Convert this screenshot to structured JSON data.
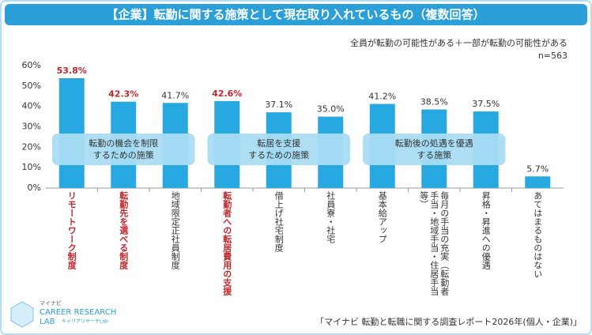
{
  "chart_data": {
    "type": "bar",
    "title": "【企業】転勤に関する施策として現在取り入れているもの（複数回答）",
    "subtitle": "全員が転勤の可能性がある＋一部が転勤の可能性がある",
    "sample_size": "n=563",
    "categories": [
      "リモートワーク制度",
      "転勤先を選べる制度",
      "地域限定正社員制度",
      "転勤者への転居費用の支援",
      "借上げ社宅制度",
      "社員寮・社宅",
      "基本給アップ",
      "毎月の手当の充実（転勤者手当・地域手当・住居手当等）",
      "昇格・昇進への優遇",
      "あてはまるものはない"
    ],
    "values": [
      53.8,
      42.3,
      41.7,
      42.6,
      37.1,
      35.0,
      41.2,
      38.5,
      37.5,
      5.7
    ],
    "value_labels": [
      "53.8%",
      "42.3%",
      "41.7%",
      "42.6%",
      "37.1%",
      "35.0%",
      "41.2%",
      "38.5%",
      "37.5%",
      "5.7%"
    ],
    "color": "#27a8e0",
    "label_colors": [
      "#c0282d",
      "#c0282d",
      "#333333",
      "#c0282d",
      "#333333",
      "#333333",
      "#333333",
      "#333333",
      "#333333",
      "#333333"
    ],
    "ylim": [
      0,
      60
    ],
    "yticks": [
      {
        "value": 0,
        "label": "0%"
      },
      {
        "value": 10,
        "label": "10%"
      },
      {
        "value": 20,
        "label": "20%"
      },
      {
        "value": 30,
        "label": "30%"
      },
      {
        "value": 40,
        "label": "40%"
      },
      {
        "value": 50,
        "label": "50%"
      },
      {
        "value": 60,
        "label": "60%"
      }
    ],
    "grid": false,
    "annotations": [
      {
        "lines": [
          "転勤の機会を制限",
          "するための施策"
        ],
        "span": [
          0,
          2
        ]
      },
      {
        "lines": [
          "転居を支援",
          "するための施策"
        ],
        "span": [
          3,
          5
        ]
      },
      {
        "lines": [
          "転勤後の処遇を優遇",
          "する施策"
        ],
        "span": [
          6,
          8
        ]
      }
    ],
    "source": "「マイナビ 転勤と転職に関する調査レポート2026年(個人・企業)」"
  },
  "logo": {
    "brand": "マイナビ",
    "line1": "CAREER RESEARCH",
    "line2": "LAB",
    "sub": "キャリアリサーチLab"
  }
}
